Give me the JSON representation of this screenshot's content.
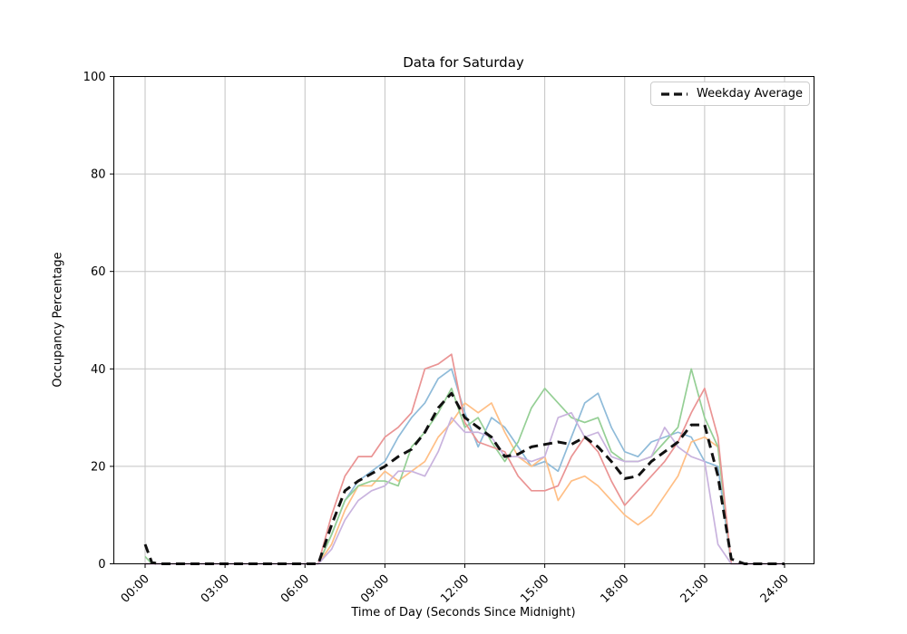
{
  "chart_data": {
    "type": "line",
    "title": "Data for Saturday",
    "xlabel": "Time of Day (Seconds Since Midnight)",
    "ylabel": "Occupancy Percentage",
    "ylim": [
      0,
      100
    ],
    "grid": true,
    "legend_position": "upper right",
    "legend_entries": [
      "Weekday Average"
    ],
    "x_ticks_hours": [
      0,
      3,
      6,
      9,
      12,
      15,
      18,
      21,
      24
    ],
    "x_tick_labels": [
      "00:00",
      "03:00",
      "06:00",
      "09:00",
      "12:00",
      "15:00",
      "18:00",
      "21:00",
      "24:00"
    ],
    "y_ticks": [
      0,
      20,
      40,
      60,
      80,
      100
    ],
    "y_tick_labels": [
      "0",
      "20",
      "40",
      "60",
      "80",
      "100"
    ],
    "x_hours": [
      0,
      0.25,
      0.5,
      1,
      1.5,
      2,
      2.5,
      3,
      3.5,
      4,
      4.5,
      5,
      5.5,
      6,
      6.5,
      7,
      7.5,
      8,
      8.5,
      9,
      9.5,
      10,
      10.5,
      11,
      11.5,
      12,
      12.5,
      13,
      13.5,
      14,
      14.5,
      15,
      15.5,
      16,
      16.5,
      17,
      17.5,
      18,
      18.5,
      19,
      19.5,
      20,
      20.5,
      21,
      21.5,
      22,
      22.5,
      23,
      23.5,
      24
    ],
    "series": [
      {
        "name": "day-line-1",
        "color": "#8fbbd9",
        "dashed": false,
        "width": 1.7,
        "values": [
          0,
          0,
          0,
          0,
          0,
          0,
          0,
          0,
          0,
          0,
          0,
          0,
          0,
          0,
          0,
          6,
          13,
          17,
          19,
          21,
          26,
          30,
          33,
          38,
          40,
          31,
          24,
          30,
          28,
          24,
          20,
          21,
          19,
          26,
          33,
          35,
          28,
          23,
          22,
          25,
          26,
          27,
          26,
          21,
          20,
          0,
          0,
          0,
          0,
          0
        ]
      },
      {
        "name": "day-line-2",
        "color": "#ffbf86",
        "dashed": false,
        "width": 1.7,
        "values": [
          0,
          0,
          0,
          0,
          0,
          0,
          0,
          0,
          0,
          0,
          0,
          0,
          0,
          0,
          0,
          4,
          11,
          16,
          16,
          19,
          17,
          19,
          21,
          26,
          29,
          33,
          31,
          33,
          27,
          22,
          20,
          22,
          13,
          17,
          18,
          16,
          13,
          10,
          8,
          10,
          14,
          18,
          25,
          26,
          24,
          0,
          0,
          0,
          0,
          0
        ]
      },
      {
        "name": "day-line-3",
        "color": "#95cf95",
        "dashed": false,
        "width": 1.7,
        "values": [
          1.5,
          0,
          0,
          0,
          0,
          0,
          0,
          0,
          0,
          0,
          0,
          0,
          0,
          0,
          0,
          6,
          13,
          16,
          17,
          17,
          16,
          24,
          27,
          31,
          36,
          28,
          30,
          25,
          21,
          25,
          32,
          36,
          33,
          30,
          29,
          30,
          23,
          21,
          21,
          22,
          25,
          28,
          40,
          30,
          24,
          0,
          0,
          0,
          0,
          0
        ]
      },
      {
        "name": "day-line-4",
        "color": "#ea9494",
        "dashed": false,
        "width": 1.7,
        "values": [
          0,
          0,
          0,
          0,
          0,
          0,
          0,
          0,
          0,
          0,
          0,
          0,
          0,
          0,
          0,
          10,
          18,
          22,
          22,
          26,
          28,
          31,
          40,
          41,
          43,
          29,
          25,
          24,
          23,
          18,
          15,
          15,
          16,
          22,
          26,
          23,
          17,
          12,
          15,
          18,
          21,
          25,
          31,
          36,
          26,
          0,
          0,
          0,
          0,
          0
        ]
      },
      {
        "name": "day-line-5",
        "color": "#c9b3de",
        "dashed": false,
        "width": 1.7,
        "values": [
          0,
          0,
          0,
          0,
          0,
          0,
          0,
          0,
          0,
          0,
          0,
          0,
          0,
          0,
          0,
          3,
          9,
          13,
          15,
          16,
          19,
          19,
          18,
          23,
          30,
          27,
          27,
          26,
          22,
          22,
          21,
          22,
          30,
          31,
          26,
          27,
          22,
          21,
          21,
          22,
          28,
          24,
          22,
          21,
          4,
          0,
          0,
          0,
          0,
          0
        ]
      },
      {
        "name": "Weekday Average",
        "color": "#111111",
        "dashed": true,
        "width": 3,
        "values": [
          4,
          0.3,
          0,
          0,
          0,
          0,
          0,
          0,
          0,
          0,
          0,
          0,
          0,
          0,
          0,
          8,
          15,
          17,
          18.5,
          20,
          22,
          23.5,
          27,
          32,
          35,
          30,
          28,
          26,
          22,
          22.5,
          24,
          24.5,
          25,
          24.5,
          26,
          24,
          21,
          17.5,
          18,
          21,
          23,
          25,
          28.5,
          28.5,
          18,
          1,
          0,
          0,
          0,
          0
        ]
      }
    ],
    "colors": {
      "grid": "#c3c3c3",
      "spine": "#000000",
      "average_line": "#111111",
      "legend_border": "#cccccc"
    }
  }
}
